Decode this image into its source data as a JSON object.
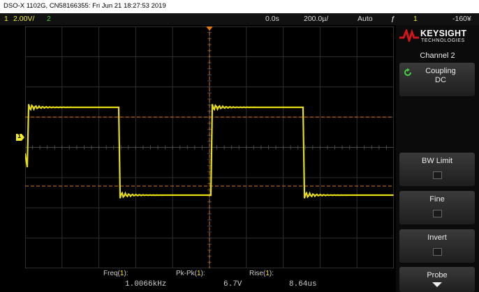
{
  "caption": "DSO-X 1102G, CN58166355: Fri Jun 21 18:27:53 2019",
  "status": {
    "ch1_num": "1",
    "ch1_scale": "2.00V/",
    "ch2_num": "2",
    "delay": "0.0s",
    "timebase": "200.0µ/",
    "trigger_mode": "Auto",
    "trig_source": "1",
    "trig_level": "-160¥"
  },
  "colors": {
    "ch1": "#f4ee22",
    "ch2": "#3fd23f",
    "cursor": "#e07a10"
  },
  "ground_marker": "1",
  "logo": {
    "word": "KEYSIGHT",
    "sub": "TECHNOLOGIES"
  },
  "menu": {
    "title": "Channel 2",
    "coupling_label": "Coupling",
    "coupling_value": "DC",
    "bw_limit": "BW Limit",
    "fine": "Fine",
    "invert": "Invert",
    "probe": "Probe"
  },
  "measurements": [
    {
      "label_pre": "Freq(",
      "ch": "1",
      "label_post": "):",
      "value": "1.0066kHz"
    },
    {
      "label_pre": "Pk-Pk(",
      "ch": "1",
      "label_post": "):",
      "value": "6.7V"
    },
    {
      "label_pre": "Rise(",
      "ch": "1",
      "label_post": "):",
      "value": "8.64us"
    }
  ]
}
